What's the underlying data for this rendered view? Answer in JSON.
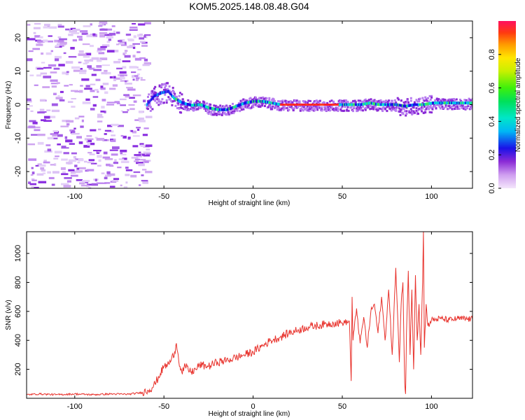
{
  "title": "KOM5.2025.148.08.48.G04",
  "chart_data": [
    {
      "type": "heatmap",
      "xlabel": "Height of straight line (km)",
      "ylabel": "Frequency (Hz)",
      "xlim": [
        -127,
        123
      ],
      "ylim": [
        -25,
        25
      ],
      "xticks": [
        -100,
        -50,
        0,
        50,
        100
      ],
      "yticks": [
        -20,
        -10,
        0,
        10,
        20
      ],
      "colorbar": {
        "label": "Normalized spectral amplitude",
        "range": [
          0,
          1
        ],
        "ticks": [
          0.0,
          0.2,
          0.4,
          0.6,
          0.8
        ]
      },
      "noise_region_x": [
        -127,
        -60
      ],
      "ridge": {
        "x": [
          -60,
          -56,
          -52,
          -48,
          -45,
          -40,
          -35,
          -30,
          -25,
          -20,
          -15,
          -10,
          -5,
          0,
          5,
          10,
          15,
          20,
          30,
          40,
          50,
          55,
          60,
          65,
          70,
          75,
          80,
          85,
          90,
          95,
          100,
          110,
          123
        ],
        "y": [
          0,
          2.5,
          3.5,
          4,
          2,
          0.5,
          -0.2,
          0,
          -1,
          -1.5,
          -1.5,
          -0.5,
          0.5,
          1,
          1,
          0.5,
          0,
          0,
          0,
          0,
          0,
          0,
          0,
          0.5,
          0,
          0,
          0,
          -0.5,
          0,
          0,
          0.5,
          0.5,
          0.5
        ]
      }
    },
    {
      "type": "line",
      "xlabel": "Height of straight line (km)",
      "ylabel": "SNR (v/v)",
      "xlim": [
        -127,
        123
      ],
      "ylim": [
        0,
        1150
      ],
      "xticks": [
        -100,
        -50,
        0,
        50,
        100
      ],
      "yticks": [
        200,
        400,
        600,
        800,
        1000
      ],
      "color": "#e8322c",
      "series": [
        {
          "x": [
            -127,
            -120,
            -110,
            -100,
            -90,
            -80,
            -70,
            -62,
            -58,
            -55,
            -52,
            -50,
            -48,
            -46,
            -44,
            -43,
            -42,
            -41,
            -40,
            -38,
            -35,
            -32,
            -30,
            -25,
            -20,
            -15,
            -10,
            -5,
            0,
            5,
            10,
            15,
            20,
            25,
            30,
            35,
            40,
            45,
            50,
            54,
            55,
            55.5,
            56,
            58,
            60,
            62,
            64,
            66,
            68,
            70,
            72,
            74,
            76,
            78,
            80,
            82,
            83,
            84,
            85,
            85.5,
            86,
            87,
            88,
            89,
            90,
            91,
            92,
            93,
            94,
            95,
            95.5,
            96,
            97,
            98,
            100,
            105,
            110,
            115,
            123
          ],
          "y": [
            25,
            30,
            25,
            30,
            25,
            30,
            28,
            40,
            60,
            100,
            170,
            220,
            230,
            260,
            320,
            380,
            300,
            220,
            180,
            220,
            180,
            200,
            230,
            220,
            250,
            260,
            280,
            300,
            320,
            360,
            400,
            420,
            450,
            470,
            490,
            500,
            510,
            520,
            520,
            530,
            120,
            700,
            400,
            620,
            380,
            560,
            350,
            600,
            650,
            450,
            700,
            400,
            750,
            300,
            900,
            250,
            650,
            800,
            100,
            30,
            450,
            880,
            300,
            750,
            200,
            850,
            400,
            650,
            300,
            800,
            1150,
            350,
            650,
            500,
            540,
            550,
            540,
            550,
            545
          ]
        }
      ]
    }
  ]
}
